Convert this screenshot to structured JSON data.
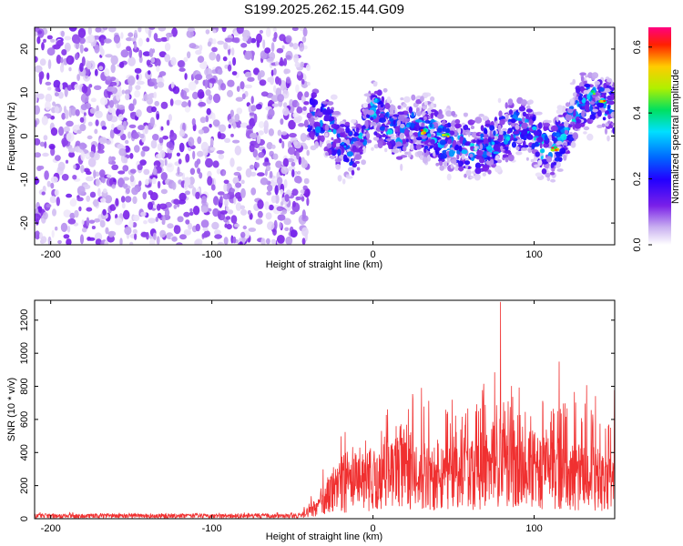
{
  "title": "S199.2025.262.15.44.G09",
  "chart_data": [
    {
      "type": "heatmap",
      "xlabel": "Height of straight line (km)",
      "ylabel": "Frequency (Hz)",
      "xlim": [
        -210,
        150
      ],
      "ylim": [
        -25,
        25
      ],
      "xticks": [
        -200,
        -100,
        0,
        100
      ],
      "yticks": [
        -20,
        -10,
        0,
        10,
        20
      ],
      "colorbar": {
        "label": "Normalized spectral amplitude",
        "range": [
          0,
          0.66
        ],
        "ticks": [
          0.0,
          0.2,
          0.4,
          0.6
        ],
        "colors": [
          "#ffffff",
          "#c9b0f0",
          "#7a20e8",
          "#2200ff",
          "#0066ff",
          "#00e0ff",
          "#00e060",
          "#b0f000",
          "#ffcc00",
          "#ff2000",
          "#ff0080"
        ]
      },
      "noise_region": {
        "x_start": -210,
        "x_end": -40,
        "amplitude": "0.00-0.12"
      },
      "ridge": {
        "x": [
          -40,
          -30,
          -20,
          -12,
          -5,
          0,
          8,
          15,
          25,
          35,
          45,
          55,
          65,
          75,
          80,
          90,
          100,
          105,
          112,
          118,
          125,
          132,
          140,
          150
        ],
        "y": [
          5,
          3,
          -2,
          -3,
          1,
          6,
          3,
          0,
          2,
          1,
          -1,
          -2,
          -3,
          -2,
          0,
          2,
          0,
          -3,
          -3,
          0,
          5,
          9,
          8,
          6
        ]
      },
      "peaks": [
        {
          "x": 32,
          "y": 1,
          "value": 0.62
        },
        {
          "x": 45,
          "y": 0,
          "value": 0.55
        },
        {
          "x": 113,
          "y": -3,
          "value": 0.64
        },
        {
          "x": 143,
          "y": 8,
          "value": 0.6
        },
        {
          "x": 136,
          "y": 10,
          "value": 0.45
        },
        {
          "x": -18,
          "y": -2,
          "value": 0.3
        },
        {
          "x": 3,
          "y": 8,
          "value": 0.35
        }
      ]
    },
    {
      "type": "line",
      "xlabel": "Height of straight line (km)",
      "ylabel": "SNR (10 * v/v)",
      "xlim": [
        -210,
        150
      ],
      "ylim": [
        0,
        1320
      ],
      "xticks": [
        -200,
        -100,
        0,
        100
      ],
      "yticks": [
        0,
        200,
        400,
        600,
        800,
        1000,
        1200
      ],
      "line_color": "#f03030",
      "series": [
        {
          "name": "SNR",
          "envelope_x": [
            -210,
            -150,
            -100,
            -45,
            -35,
            -25,
            -10,
            0,
            10,
            20,
            30,
            40,
            50,
            60,
            70,
            80,
            90,
            100,
            110,
            120,
            130,
            140,
            150
          ],
          "envelope_mean": [
            20,
            20,
            20,
            20,
            80,
            200,
            280,
            300,
            330,
            340,
            320,
            300,
            290,
            330,
            380,
            420,
            400,
            370,
            330,
            300,
            320,
            290,
            240
          ],
          "envelope_peak": [
            40,
            40,
            40,
            40,
            200,
            450,
            600,
            650,
            700,
            780,
            850,
            1050,
            900,
            950,
            1100,
            1310,
            1050,
            1150,
            900,
            1080,
            980,
            820,
            780
          ],
          "max_value": 1310
        }
      ]
    }
  ]
}
